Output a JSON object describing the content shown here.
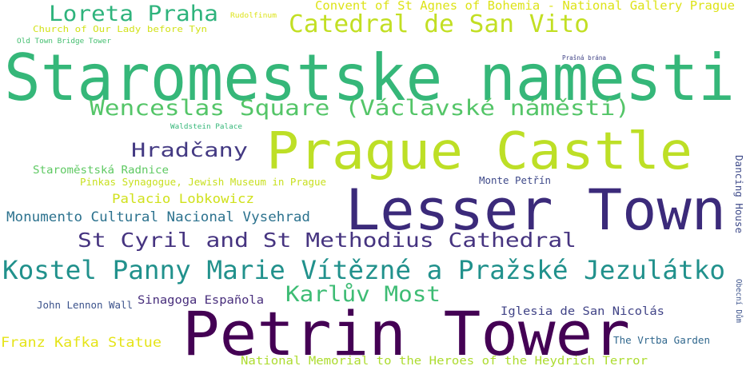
{
  "words": [
    {
      "text": "Staromestske namesti",
      "color": "#35b779"
    },
    {
      "text": "Prague Castle",
      "color": "#bddf26"
    },
    {
      "text": "Lesser Town",
      "color": "#3b2a7a"
    },
    {
      "text": "Petrin Tower",
      "color": "#440154"
    },
    {
      "text": "Kostel Panny Marie Vítězné a Pražské Jezulátko",
      "color": "#21918c"
    },
    {
      "text": "Wenceslas Square (Václavské náměstí)",
      "color": "#54c568"
    },
    {
      "text": "Catedral de San Vito",
      "color": "#c2df23"
    },
    {
      "text": "Loreta Praha",
      "color": "#2eb37c"
    },
    {
      "text": "St Cyril and St Methodius Cathedral",
      "color": "#463480"
    },
    {
      "text": "Hradčany",
      "color": "#443a83"
    },
    {
      "text": "Karlův Most",
      "color": "#3dbc74"
    },
    {
      "text": "Convent of St Agnes of Bohemia - National Gallery Prague",
      "color": "#dde318"
    },
    {
      "text": "Monumento Cultural Nacional Vysehrad",
      "color": "#2c728e"
    },
    {
      "text": "Palacio Lobkowicz",
      "color": "#d0e11c"
    },
    {
      "text": "Franz Kafka Statue",
      "color": "#e5e419"
    },
    {
      "text": "National Memorial to the Heroes of the Heydrich Terror",
      "color": "#addc30"
    },
    {
      "text": "Iglesia de San Nicolás",
      "color": "#414487"
    },
    {
      "text": "Sinagoga Española",
      "color": "#472d7b"
    },
    {
      "text": "Staroměstská Radnice",
      "color": "#5ec962"
    },
    {
      "text": "Pinkas Synagogue, Jewish Museum in Prague",
      "color": "#c8e020"
    },
    {
      "text": "Church of Our Lady before Tyn",
      "color": "#d2e21b"
    },
    {
      "text": "The Vrtba Garden",
      "color": "#31688e"
    },
    {
      "text": "John Lennon Wall",
      "color": "#3b528b"
    },
    {
      "text": "Monte Petřín",
      "color": "#3e4989"
    },
    {
      "text": "Dancing House",
      "color": "#3e4a89"
    },
    {
      "text": "Obecní Dům",
      "color": "#3b528b"
    },
    {
      "text": "Waldstein Palace",
      "color": "#35b779"
    },
    {
      "text": "Old Town Bridge Tower",
      "color": "#44bf70"
    },
    {
      "text": "Rudolfinum",
      "color": "#dde318"
    },
    {
      "text": "Prašná brána",
      "color": "#414487"
    }
  ]
}
